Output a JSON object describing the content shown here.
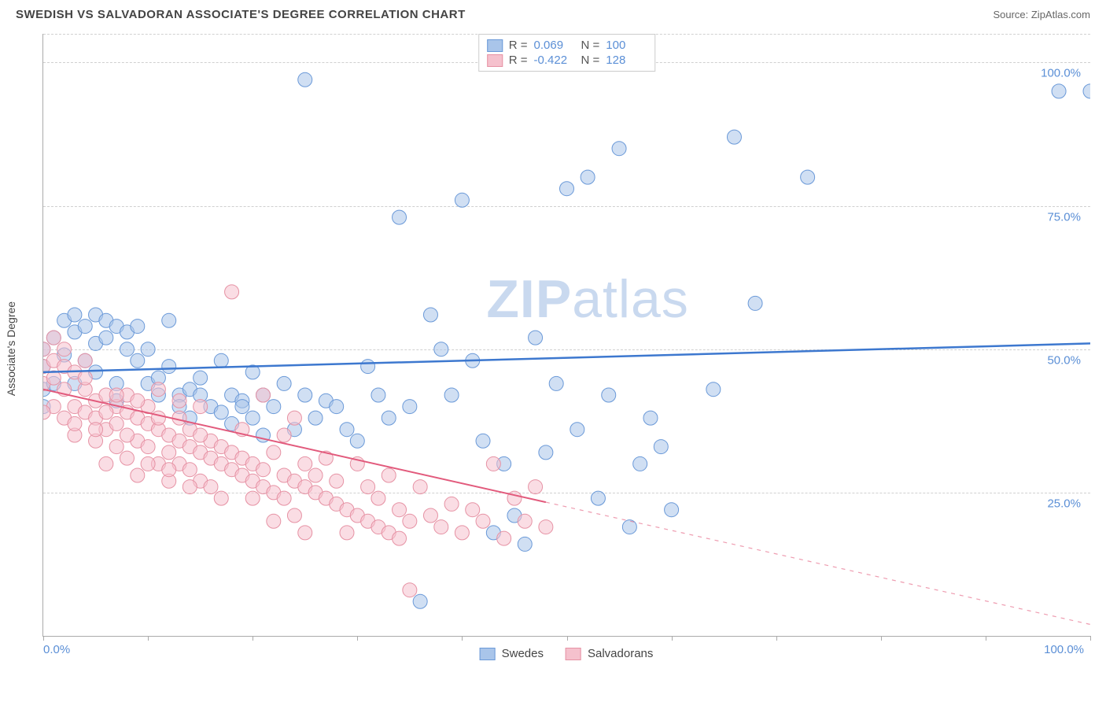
{
  "title": "SWEDISH VS SALVADORAN ASSOCIATE'S DEGREE CORRELATION CHART",
  "source_prefix": "Source: ",
  "source": "ZipAtlas.com",
  "ylabel": "Associate's Degree",
  "watermark": "ZIPatlas",
  "chart": {
    "type": "scatter",
    "xlim": [
      0,
      100
    ],
    "ylim": [
      0,
      105
    ],
    "background_color": "#ffffff",
    "grid_color": "#d0d0d0",
    "grid_dash": "4,4",
    "axis_color": "#aaaaaa",
    "tick_label_color": "#5b8fd6",
    "tick_fontsize": 15,
    "ylabel_fontsize": 14,
    "y_ticks": [
      {
        "value": 25,
        "label": "25.0%"
      },
      {
        "value": 50,
        "label": "50.0%"
      },
      {
        "value": 75,
        "label": "75.0%"
      },
      {
        "value": 100,
        "label": "100.0%"
      }
    ],
    "x_ticks": [
      0,
      10,
      20,
      30,
      40,
      50,
      60,
      70,
      80,
      90,
      100
    ],
    "x_labels": [
      {
        "value": 0,
        "label": "0.0%"
      },
      {
        "value": 100,
        "label": "100.0%"
      }
    ],
    "marker_radius": 9,
    "marker_opacity": 0.55,
    "series": [
      {
        "name": "Swedes",
        "fill_color": "#a9c5ea",
        "stroke_color": "#6a99d8",
        "r_value": "0.069",
        "n_value": "100",
        "trend": {
          "x1": 0,
          "y1": 46,
          "x2": 100,
          "y2": 51,
          "solid_until_x": 100,
          "line_color": "#3d78cf",
          "line_width": 2.5
        },
        "points": [
          [
            0,
            43
          ],
          [
            0,
            47
          ],
          [
            0,
            50
          ],
          [
            0,
            40
          ],
          [
            1,
            44
          ],
          [
            1,
            52
          ],
          [
            2,
            55
          ],
          [
            2,
            49
          ],
          [
            3,
            53
          ],
          [
            3,
            56
          ],
          [
            3,
            44
          ],
          [
            4,
            54
          ],
          [
            4,
            48
          ],
          [
            5,
            56
          ],
          [
            5,
            51
          ],
          [
            5,
            46
          ],
          [
            6,
            55
          ],
          [
            6,
            52
          ],
          [
            7,
            54
          ],
          [
            7,
            44
          ],
          [
            7,
            41
          ],
          [
            8,
            53
          ],
          [
            8,
            50
          ],
          [
            9,
            54
          ],
          [
            9,
            48
          ],
          [
            10,
            50
          ],
          [
            10,
            44
          ],
          [
            11,
            45
          ],
          [
            11,
            42
          ],
          [
            12,
            47
          ],
          [
            12,
            55
          ],
          [
            13,
            42
          ],
          [
            13,
            40
          ],
          [
            14,
            43
          ],
          [
            14,
            38
          ],
          [
            15,
            42
          ],
          [
            15,
            45
          ],
          [
            16,
            40
          ],
          [
            17,
            48
          ],
          [
            17,
            39
          ],
          [
            18,
            42
          ],
          [
            18,
            37
          ],
          [
            19,
            41
          ],
          [
            19,
            40
          ],
          [
            20,
            46
          ],
          [
            20,
            38
          ],
          [
            21,
            42
          ],
          [
            21,
            35
          ],
          [
            22,
            40
          ],
          [
            23,
            44
          ],
          [
            24,
            36
          ],
          [
            25,
            42
          ],
          [
            25,
            97
          ],
          [
            26,
            38
          ],
          [
            27,
            41
          ],
          [
            28,
            40
          ],
          [
            29,
            36
          ],
          [
            30,
            34
          ],
          [
            31,
            47
          ],
          [
            32,
            42
          ],
          [
            33,
            38
          ],
          [
            34,
            73
          ],
          [
            35,
            40
          ],
          [
            36,
            6
          ],
          [
            37,
            56
          ],
          [
            38,
            50
          ],
          [
            39,
            42
          ],
          [
            40,
            76
          ],
          [
            41,
            48
          ],
          [
            42,
            34
          ],
          [
            43,
            18
          ],
          [
            44,
            30
          ],
          [
            45,
            21
          ],
          [
            46,
            16
          ],
          [
            47,
            52
          ],
          [
            48,
            32
          ],
          [
            49,
            44
          ],
          [
            50,
            78
          ],
          [
            51,
            36
          ],
          [
            52,
            80
          ],
          [
            53,
            24
          ],
          [
            54,
            42
          ],
          [
            55,
            85
          ],
          [
            56,
            19
          ],
          [
            57,
            30
          ],
          [
            58,
            38
          ],
          [
            59,
            33
          ],
          [
            60,
            22
          ],
          [
            64,
            43
          ],
          [
            66,
            87
          ],
          [
            68,
            58
          ],
          [
            73,
            80
          ],
          [
            97,
            95
          ],
          [
            100,
            95
          ]
        ]
      },
      {
        "name": "Salvadorans",
        "fill_color": "#f5c1cd",
        "stroke_color": "#e692a4",
        "r_value": "-0.422",
        "n_value": "128",
        "trend": {
          "x1": 0,
          "y1": 43,
          "x2": 100,
          "y2": 2,
          "solid_until_x": 48,
          "line_color": "#e25a7c",
          "line_width": 2
        },
        "points": [
          [
            0,
            47
          ],
          [
            0,
            44
          ],
          [
            0,
            50
          ],
          [
            1,
            48
          ],
          [
            1,
            52
          ],
          [
            1,
            40
          ],
          [
            2,
            47
          ],
          [
            2,
            38
          ],
          [
            2,
            43
          ],
          [
            3,
            46
          ],
          [
            3,
            40
          ],
          [
            3,
            35
          ],
          [
            4,
            43
          ],
          [
            4,
            39
          ],
          [
            4,
            48
          ],
          [
            5,
            41
          ],
          [
            5,
            38
          ],
          [
            5,
            34
          ],
          [
            6,
            42
          ],
          [
            6,
            36
          ],
          [
            6,
            30
          ],
          [
            7,
            40
          ],
          [
            7,
            37
          ],
          [
            7,
            33
          ],
          [
            8,
            39
          ],
          [
            8,
            42
          ],
          [
            8,
            31
          ],
          [
            9,
            38
          ],
          [
            9,
            34
          ],
          [
            9,
            28
          ],
          [
            10,
            37
          ],
          [
            10,
            33
          ],
          [
            10,
            40
          ],
          [
            11,
            36
          ],
          [
            11,
            30
          ],
          [
            11,
            43
          ],
          [
            12,
            35
          ],
          [
            12,
            32
          ],
          [
            12,
            27
          ],
          [
            13,
            34
          ],
          [
            13,
            30
          ],
          [
            13,
            38
          ],
          [
            14,
            33
          ],
          [
            14,
            29
          ],
          [
            14,
            36
          ],
          [
            15,
            32
          ],
          [
            15,
            27
          ],
          [
            15,
            40
          ],
          [
            16,
            31
          ],
          [
            16,
            26
          ],
          [
            16,
            34
          ],
          [
            17,
            30
          ],
          [
            17,
            33
          ],
          [
            17,
            24
          ],
          [
            18,
            29
          ],
          [
            18,
            60
          ],
          [
            18,
            32
          ],
          [
            19,
            28
          ],
          [
            19,
            31
          ],
          [
            19,
            36
          ],
          [
            20,
            27
          ],
          [
            20,
            30
          ],
          [
            20,
            24
          ],
          [
            21,
            26
          ],
          [
            21,
            29
          ],
          [
            21,
            42
          ],
          [
            22,
            25
          ],
          [
            22,
            32
          ],
          [
            22,
            20
          ],
          [
            23,
            28
          ],
          [
            23,
            24
          ],
          [
            23,
            35
          ],
          [
            24,
            27
          ],
          [
            24,
            21
          ],
          [
            24,
            38
          ],
          [
            25,
            26
          ],
          [
            25,
            30
          ],
          [
            25,
            18
          ],
          [
            26,
            25
          ],
          [
            26,
            28
          ],
          [
            27,
            24
          ],
          [
            27,
            31
          ],
          [
            28,
            23
          ],
          [
            28,
            27
          ],
          [
            29,
            22
          ],
          [
            29,
            18
          ],
          [
            30,
            21
          ],
          [
            30,
            30
          ],
          [
            31,
            20
          ],
          [
            31,
            26
          ],
          [
            32,
            19
          ],
          [
            32,
            24
          ],
          [
            33,
            18
          ],
          [
            33,
            28
          ],
          [
            34,
            17
          ],
          [
            34,
            22
          ],
          [
            35,
            8
          ],
          [
            35,
            20
          ],
          [
            36,
            26
          ],
          [
            37,
            21
          ],
          [
            38,
            19
          ],
          [
            39,
            23
          ],
          [
            40,
            18
          ],
          [
            41,
            22
          ],
          [
            42,
            20
          ],
          [
            43,
            30
          ],
          [
            44,
            17
          ],
          [
            45,
            24
          ],
          [
            46,
            20
          ],
          [
            47,
            26
          ],
          [
            48,
            19
          ],
          [
            0,
            39
          ],
          [
            1,
            45
          ],
          [
            2,
            50
          ],
          [
            3,
            37
          ],
          [
            4,
            45
          ],
          [
            5,
            36
          ],
          [
            6,
            39
          ],
          [
            7,
            42
          ],
          [
            8,
            35
          ],
          [
            9,
            41
          ],
          [
            10,
            30
          ],
          [
            11,
            38
          ],
          [
            12,
            29
          ],
          [
            13,
            41
          ],
          [
            14,
            26
          ],
          [
            15,
            35
          ]
        ]
      }
    ],
    "legend_top_labels": {
      "r_prefix": "R =",
      "n_prefix": "N ="
    },
    "legend_bottom_labels": [
      "Swedes",
      "Salvadorans"
    ]
  }
}
